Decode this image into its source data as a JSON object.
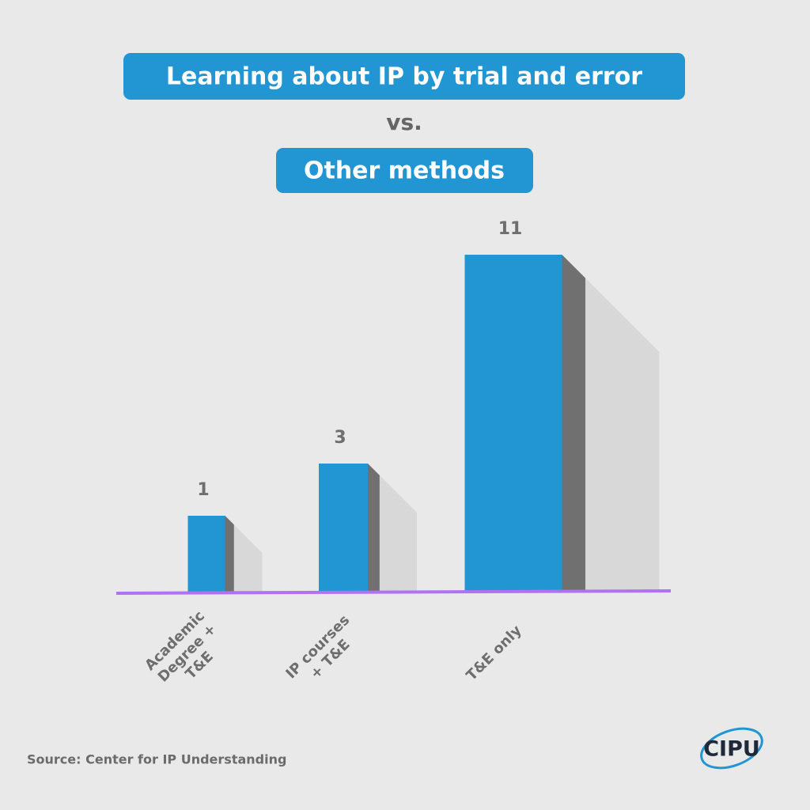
{
  "chart_data": {
    "type": "bar",
    "title": "Learning about IP by trial and error",
    "subtitle": "vs.",
    "title2": "Other methods",
    "categories": [
      [
        "Academic",
        "Degree +",
        "T&E"
      ],
      [
        "IP courses",
        "+ T&E"
      ],
      [
        "T&E only"
      ]
    ],
    "values": [
      1,
      3,
      11
    ],
    "color": "#2196d3",
    "side_color": "#707070",
    "shadow_color": "#d8d8d8",
    "baseline_color": "#b072f0",
    "source": "Source: Center for IP Understanding",
    "logo": "CIPU"
  }
}
